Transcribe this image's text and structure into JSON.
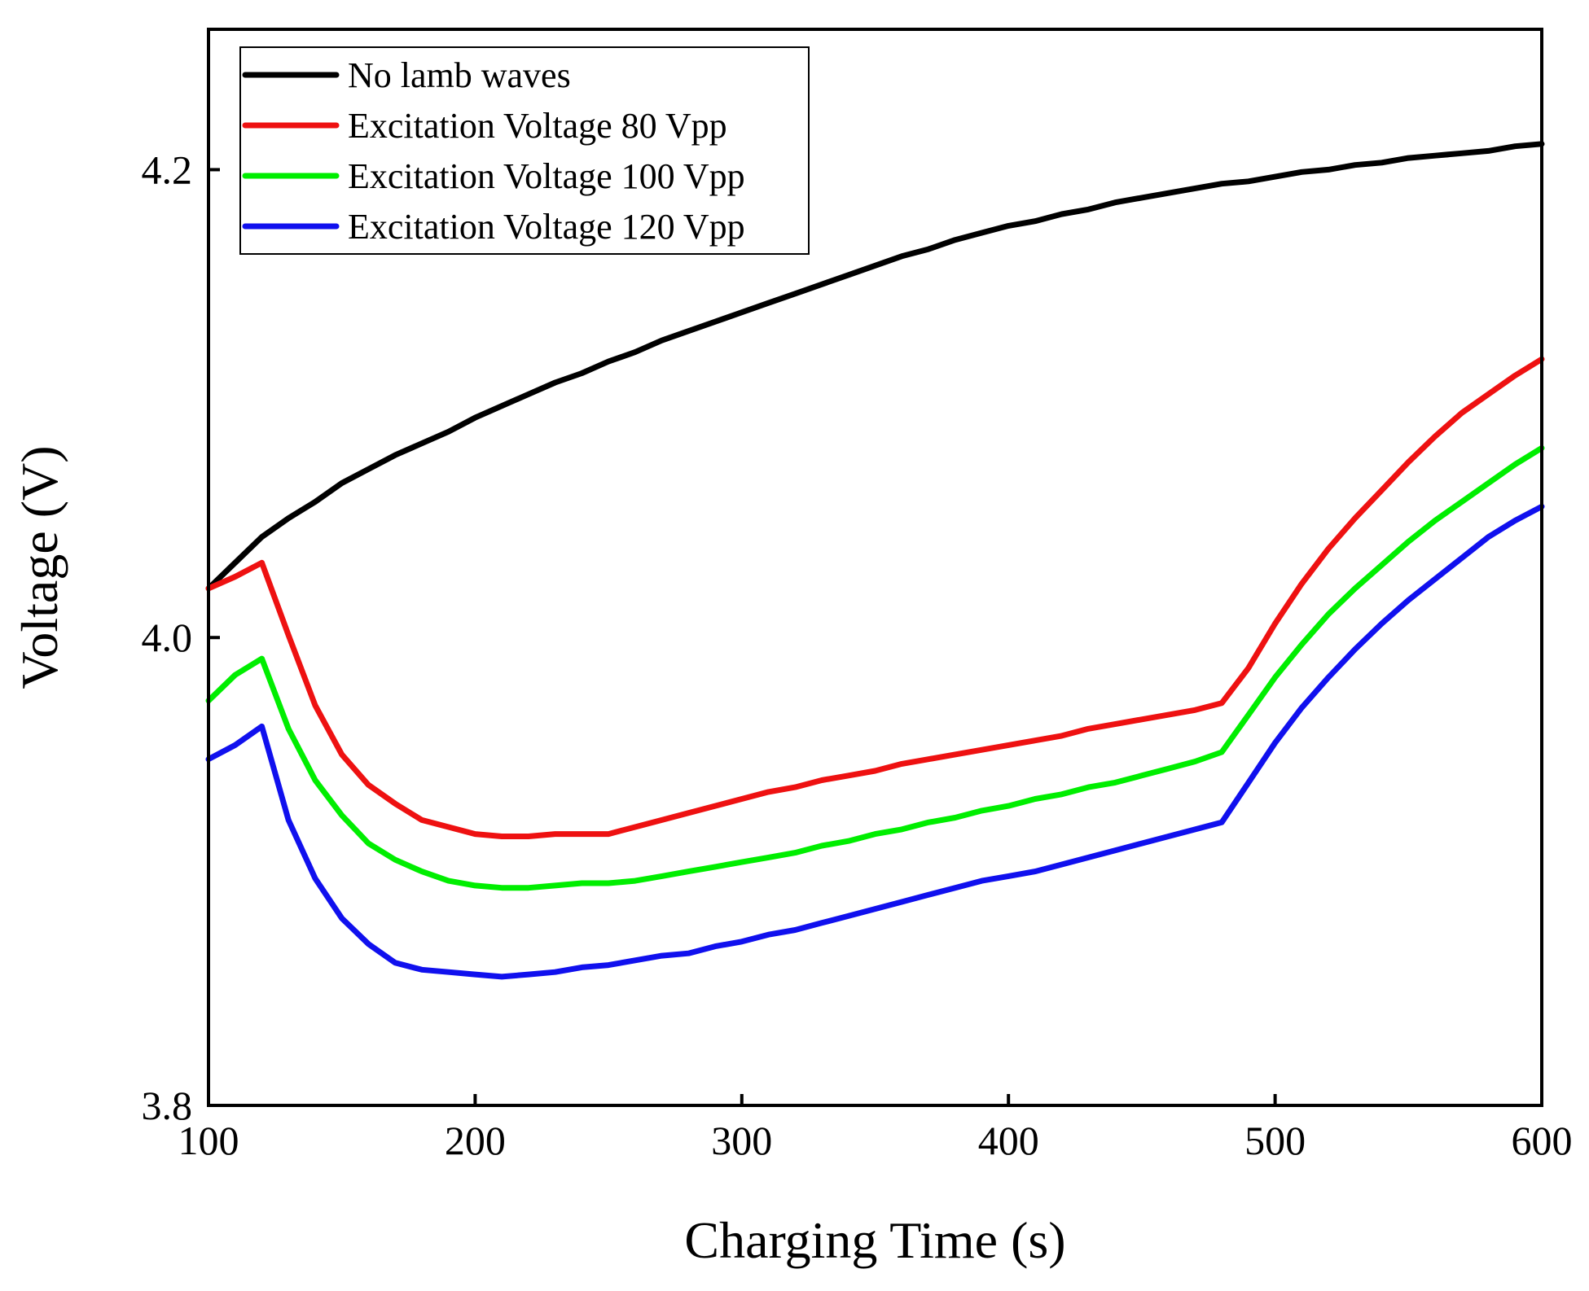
{
  "chart_data": {
    "type": "line",
    "title": "",
    "xlabel": "Charging Time (s)",
    "ylabel": "Voltage (V)",
    "xlim": [
      100,
      600
    ],
    "ylim": [
      3.8,
      4.26
    ],
    "xticks": [
      100,
      200,
      300,
      400,
      500,
      600
    ],
    "yticks": [
      3.8,
      4.0,
      4.2
    ],
    "xtick_labels": [
      "100",
      "200",
      "300",
      "400",
      "500",
      "600"
    ],
    "ytick_labels": [
      "3.8",
      "4.0",
      "4.2"
    ],
    "grid": false,
    "legend_position": "top-left",
    "x": [
      100,
      110,
      120,
      130,
      140,
      150,
      160,
      170,
      180,
      190,
      200,
      210,
      220,
      230,
      240,
      250,
      260,
      270,
      280,
      290,
      300,
      310,
      320,
      330,
      340,
      350,
      360,
      370,
      380,
      390,
      400,
      410,
      420,
      430,
      440,
      450,
      460,
      470,
      480,
      490,
      500,
      510,
      520,
      530,
      540,
      550,
      560,
      570,
      580,
      590,
      600
    ],
    "series": [
      {
        "name": "No lamb waves",
        "color": "#000000",
        "values": [
          4.021,
          4.032,
          4.043,
          4.051,
          4.058,
          4.066,
          4.072,
          4.078,
          4.083,
          4.088,
          4.094,
          4.099,
          4.104,
          4.109,
          4.113,
          4.118,
          4.122,
          4.127,
          4.131,
          4.135,
          4.139,
          4.143,
          4.147,
          4.151,
          4.155,
          4.159,
          4.163,
          4.166,
          4.17,
          4.173,
          4.176,
          4.178,
          4.181,
          4.183,
          4.186,
          4.188,
          4.19,
          4.192,
          4.194,
          4.195,
          4.197,
          4.199,
          4.2,
          4.202,
          4.203,
          4.205,
          4.206,
          4.207,
          4.208,
          4.21,
          4.211
        ]
      },
      {
        "name": "Excitation Voltage 80 Vpp",
        "color": "#ee1111",
        "values": [
          4.021,
          4.026,
          4.032,
          4.001,
          3.971,
          3.95,
          3.937,
          3.929,
          3.922,
          3.919,
          3.916,
          3.915,
          3.915,
          3.916,
          3.916,
          3.916,
          3.919,
          3.922,
          3.925,
          3.928,
          3.931,
          3.934,
          3.936,
          3.939,
          3.941,
          3.943,
          3.946,
          3.948,
          3.95,
          3.952,
          3.954,
          3.956,
          3.958,
          3.961,
          3.963,
          3.965,
          3.967,
          3.969,
          3.972,
          3.987,
          4.006,
          4.023,
          4.038,
          4.051,
          4.063,
          4.075,
          4.086,
          4.096,
          4.104,
          4.112,
          4.119
        ]
      },
      {
        "name": "Excitation Voltage 100 Vpp",
        "color": "#00ee00",
        "values": [
          3.973,
          3.984,
          3.991,
          3.961,
          3.939,
          3.924,
          3.912,
          3.905,
          3.9,
          3.896,
          3.894,
          3.893,
          3.893,
          3.894,
          3.895,
          3.895,
          3.896,
          3.898,
          3.9,
          3.902,
          3.904,
          3.906,
          3.908,
          3.911,
          3.913,
          3.916,
          3.918,
          3.921,
          3.923,
          3.926,
          3.928,
          3.931,
          3.933,
          3.936,
          3.938,
          3.941,
          3.944,
          3.947,
          3.951,
          3.967,
          3.983,
          3.997,
          4.01,
          4.021,
          4.031,
          4.041,
          4.05,
          4.058,
          4.066,
          4.074,
          4.081
        ]
      },
      {
        "name": "Excitation Voltage 120 Vpp",
        "color": "#1010ee",
        "values": [
          3.948,
          3.954,
          3.962,
          3.922,
          3.897,
          3.88,
          3.869,
          3.861,
          3.858,
          3.857,
          3.856,
          3.855,
          3.856,
          3.857,
          3.859,
          3.86,
          3.862,
          3.864,
          3.865,
          3.868,
          3.87,
          3.873,
          3.875,
          3.878,
          3.881,
          3.884,
          3.887,
          3.89,
          3.893,
          3.896,
          3.898,
          3.9,
          3.903,
          3.906,
          3.909,
          3.912,
          3.915,
          3.918,
          3.921,
          3.938,
          3.955,
          3.97,
          3.983,
          3.995,
          4.006,
          4.016,
          4.025,
          4.034,
          4.043,
          4.05,
          4.056
        ]
      }
    ]
  }
}
